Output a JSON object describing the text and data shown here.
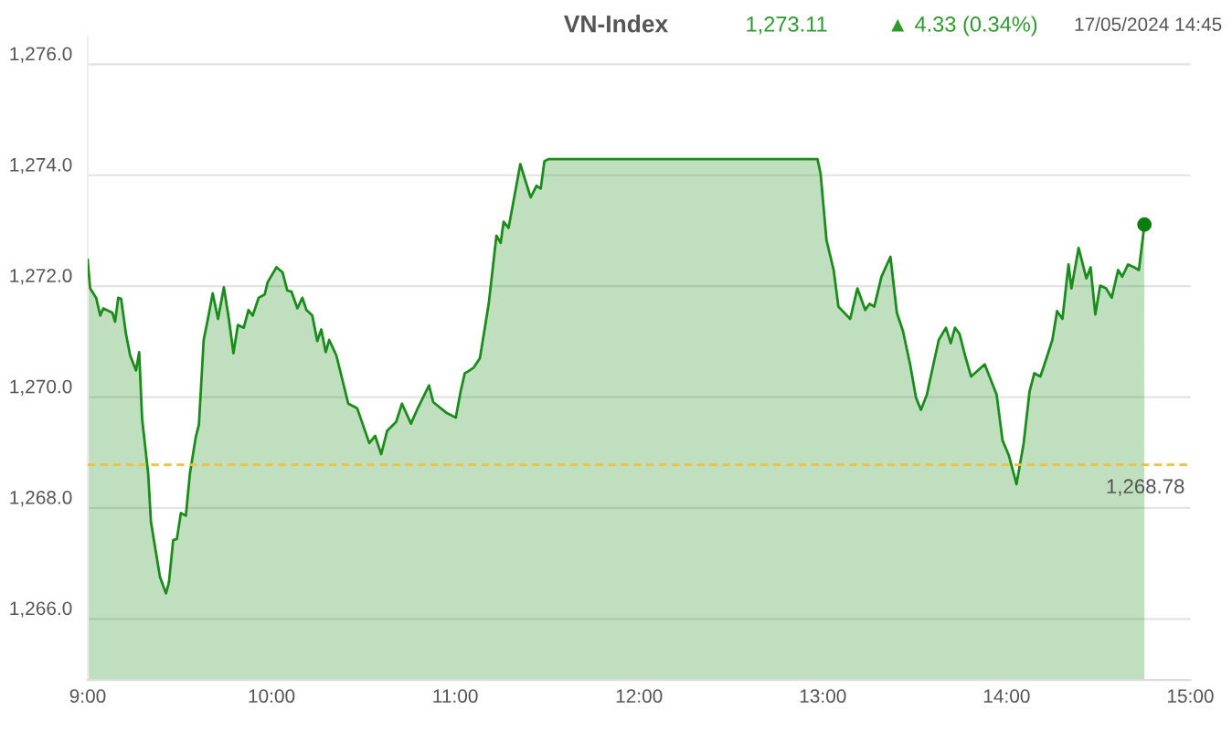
{
  "chart_data": {
    "type": "area",
    "title": "VN-Index",
    "annotations": [
      "1,273.11",
      "▲ 4.33 (0.34%)",
      "17/05/2024 14:45"
    ],
    "series": [
      {
        "color": "#1a8c1a",
        "x": [
          9.0,
          9.013,
          9.046,
          9.068,
          9.085,
          9.134,
          9.149,
          9.166,
          9.182,
          9.208,
          9.231,
          9.263,
          9.28,
          9.296,
          9.329,
          9.344,
          9.393,
          9.426,
          9.442,
          9.465,
          9.485,
          9.507,
          9.534,
          9.556,
          9.588,
          9.605,
          9.631,
          9.654,
          9.68,
          9.709,
          9.741,
          9.768,
          9.793,
          9.817,
          9.849,
          9.875,
          9.898,
          9.93,
          9.963,
          9.979,
          10.027,
          10.06,
          10.086,
          10.109,
          10.141,
          10.168,
          10.19,
          10.222,
          10.249,
          10.271,
          10.295,
          10.314,
          10.353,
          10.418,
          10.466,
          10.532,
          10.564,
          10.597,
          10.629,
          10.678,
          10.71,
          10.759,
          10.792,
          10.857,
          10.88,
          10.954,
          11.003,
          11.029,
          11.052,
          11.068,
          11.1,
          11.134,
          11.182,
          11.224,
          11.247,
          11.263,
          11.29,
          11.354,
          11.41,
          11.442,
          11.465,
          11.485,
          11.507,
          12.971,
          12.988,
          13.02,
          13.059,
          13.085,
          13.149,
          13.188,
          13.231,
          13.254,
          13.28,
          13.319,
          13.368,
          13.403,
          13.436,
          13.475,
          13.507,
          13.534,
          13.566,
          13.605,
          13.631,
          13.67,
          13.696,
          13.719,
          13.744,
          13.774,
          13.807,
          13.881,
          13.907,
          13.946,
          13.978,
          14.012,
          14.054,
          14.093,
          14.125,
          14.151,
          14.184,
          14.217,
          14.249,
          14.275,
          14.304,
          14.337,
          14.353,
          14.392,
          14.434,
          14.457,
          14.483,
          14.509,
          14.541,
          14.572,
          14.607,
          14.629,
          14.661,
          14.694,
          14.72,
          14.75
        ],
        "values": [
          1272.47,
          1271.96,
          1271.79,
          1271.47,
          1271.6,
          1271.52,
          1271.36,
          1271.79,
          1271.77,
          1271.14,
          1270.75,
          1270.48,
          1270.81,
          1269.61,
          1268.62,
          1267.75,
          1266.76,
          1266.46,
          1266.66,
          1267.42,
          1267.44,
          1267.91,
          1267.86,
          1268.62,
          1269.28,
          1269.5,
          1271.03,
          1271.41,
          1271.87,
          1271.41,
          1271.98,
          1271.41,
          1270.79,
          1271.3,
          1271.25,
          1271.57,
          1271.47,
          1271.79,
          1271.85,
          1272.07,
          1272.34,
          1272.25,
          1271.92,
          1271.9,
          1271.6,
          1271.79,
          1271.57,
          1271.47,
          1271.01,
          1271.22,
          1270.81,
          1271.03,
          1270.75,
          1269.88,
          1269.8,
          1269.17,
          1269.3,
          1268.97,
          1269.39,
          1269.55,
          1269.88,
          1269.52,
          1269.77,
          1270.21,
          1269.91,
          1269.71,
          1269.63,
          1270.1,
          1270.43,
          1270.46,
          1270.53,
          1270.7,
          1271.68,
          1272.91,
          1272.78,
          1273.16,
          1273.05,
          1274.2,
          1273.6,
          1273.81,
          1273.76,
          1274.25,
          1274.29,
          1274.29,
          1274.03,
          1272.83,
          1272.29,
          1271.63,
          1271.41,
          1271.96,
          1271.57,
          1271.68,
          1271.63,
          1272.17,
          1272.53,
          1271.52,
          1271.19,
          1270.59,
          1269.99,
          1269.77,
          1270.04,
          1270.64,
          1271.03,
          1271.25,
          1270.97,
          1271.25,
          1271.14,
          1270.75,
          1270.37,
          1270.59,
          1270.37,
          1270.04,
          1269.22,
          1268.95,
          1268.43,
          1269.17,
          1270.1,
          1270.43,
          1270.37,
          1270.7,
          1271.03,
          1271.55,
          1271.41,
          1272.39,
          1271.96,
          1272.69,
          1272.14,
          1272.34,
          1271.49,
          1272.01,
          1271.96,
          1271.79,
          1272.29,
          1272.17,
          1272.39,
          1272.34,
          1272.29,
          1273.11
        ]
      },
      {
        "type": "scatter",
        "color": "#0a7d0a",
        "x": [
          14.75
        ],
        "values": [
          1273.11
        ]
      }
    ],
    "ref_lines": [
      {
        "axis": "y",
        "value": 1268.78,
        "label": "1,268.78",
        "color": "#f0c040",
        "line_style": "dashed"
      }
    ],
    "xlim": [
      9,
      15
    ],
    "xticks": [
      {
        "value": 9,
        "label": "9:00"
      },
      {
        "value": 10,
        "label": "10:00"
      },
      {
        "value": 11,
        "label": "11:00"
      },
      {
        "value": 12,
        "label": "12:00"
      },
      {
        "value": 13,
        "label": "13:00"
      },
      {
        "value": 14,
        "label": "14:00"
      },
      {
        "value": 15,
        "label": "15:00"
      }
    ],
    "ylim": [
      1264.9,
      1276.5
    ],
    "yticks": [
      {
        "value": 1266,
        "label": "1,266.0"
      },
      {
        "value": 1268,
        "label": "1,268.0"
      },
      {
        "value": 1270,
        "label": "1,270.0"
      },
      {
        "value": 1272,
        "label": "1,272.0"
      },
      {
        "value": 1274,
        "label": "1,274.0"
      },
      {
        "value": 1276,
        "label": "1,276.0"
      }
    ],
    "grid": "y",
    "legend": false
  }
}
